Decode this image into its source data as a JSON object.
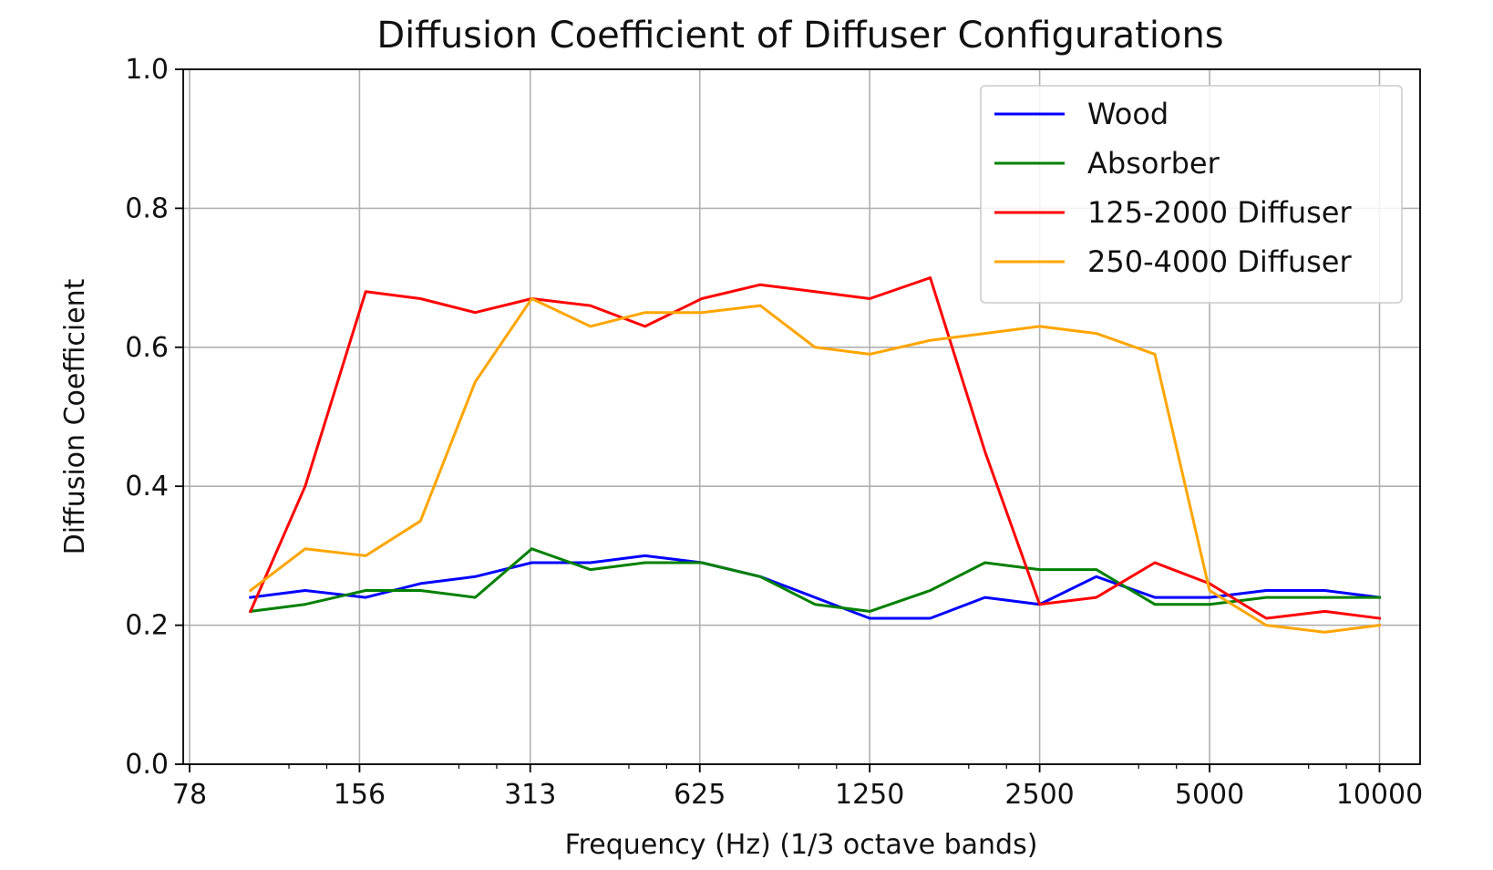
{
  "chart_data": {
    "type": "line",
    "title": "Diffusion Coefficient of Diffuser Configurations",
    "xlabel": "Frequency (Hz) (1/3 octave bands)",
    "ylabel": "Diffusion Coefficient",
    "x_scale": "log2",
    "xlim": [
      76,
      11800
    ],
    "ylim": [
      0,
      1
    ],
    "x_ticks": [
      78,
      156,
      313,
      625,
      1250,
      2500,
      5000,
      10000
    ],
    "x_tick_labels": [
      "78",
      "156",
      "313",
      "625",
      "1250",
      "2500",
      "5000",
      "10000"
    ],
    "y_ticks": [
      0,
      0.2,
      0.4,
      0.6,
      0.8,
      1
    ],
    "y_tick_labels": [
      "0.0",
      "0.2",
      "0.4",
      "0.6",
      "0.8",
      "1.0"
    ],
    "grid": true,
    "legend_position": "top-right",
    "x": [
      100,
      125,
      160,
      200,
      250,
      315,
      400,
      500,
      630,
      800,
      1000,
      1250,
      1600,
      2000,
      2500,
      3150,
      4000,
      5000,
      6300,
      8000,
      10000
    ],
    "series": [
      {
        "name": "Wood",
        "color": "#0000ff",
        "values": [
          0.24,
          0.25,
          0.24,
          0.26,
          0.27,
          0.29,
          0.29,
          0.3,
          0.29,
          0.27,
          0.24,
          0.21,
          0.21,
          0.24,
          0.23,
          0.27,
          0.24,
          0.24,
          0.25,
          0.25,
          0.24
        ]
      },
      {
        "name": "Absorber",
        "color": "#008000",
        "values": [
          0.22,
          0.23,
          0.25,
          0.25,
          0.24,
          0.31,
          0.28,
          0.29,
          0.29,
          0.27,
          0.23,
          0.22,
          0.25,
          0.29,
          0.28,
          0.28,
          0.23,
          0.23,
          0.24,
          0.24,
          0.24
        ]
      },
      {
        "name": "125-2000 Diffuser",
        "color": "#ff0000",
        "values": [
          0.22,
          0.4,
          0.68,
          0.67,
          0.65,
          0.67,
          0.66,
          0.63,
          0.67,
          0.69,
          0.68,
          0.67,
          0.7,
          0.45,
          0.23,
          0.24,
          0.29,
          0.26,
          0.21,
          0.22,
          0.21
        ]
      },
      {
        "name": "250-4000 Diffuser",
        "color": "#ffa500",
        "values": [
          0.25,
          0.31,
          0.3,
          0.35,
          0.55,
          0.67,
          0.63,
          0.65,
          0.65,
          0.66,
          0.6,
          0.59,
          0.61,
          0.62,
          0.63,
          0.62,
          0.59,
          0.25,
          0.2,
          0.19,
          0.2
        ]
      }
    ]
  }
}
